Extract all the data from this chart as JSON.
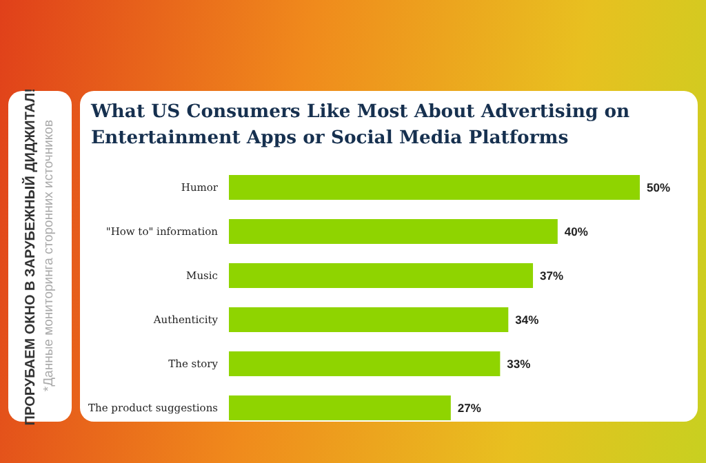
{
  "chart_data": {
    "type": "bar",
    "orientation": "horizontal",
    "title": "What US Consumers Like Most About Advertising on Entertainment Apps or Social Media Platforms",
    "categories": [
      "Humor",
      "\"How to\" information",
      "Music",
      "Authenticity",
      "The story",
      "The product suggestions"
    ],
    "values": [
      50,
      40,
      37,
      34,
      33,
      27
    ],
    "value_labels": [
      "50%",
      "40%",
      "37%",
      "34%",
      "33%",
      "27%"
    ],
    "color": "#8fd400",
    "annotations": [
      "ПРОРУБАЕМ ОКНО В ЗАРУБЕЖНЫЙ ДИДЖИТАЛ!",
      "*Данные мониторинга сторонних источников"
    ]
  }
}
